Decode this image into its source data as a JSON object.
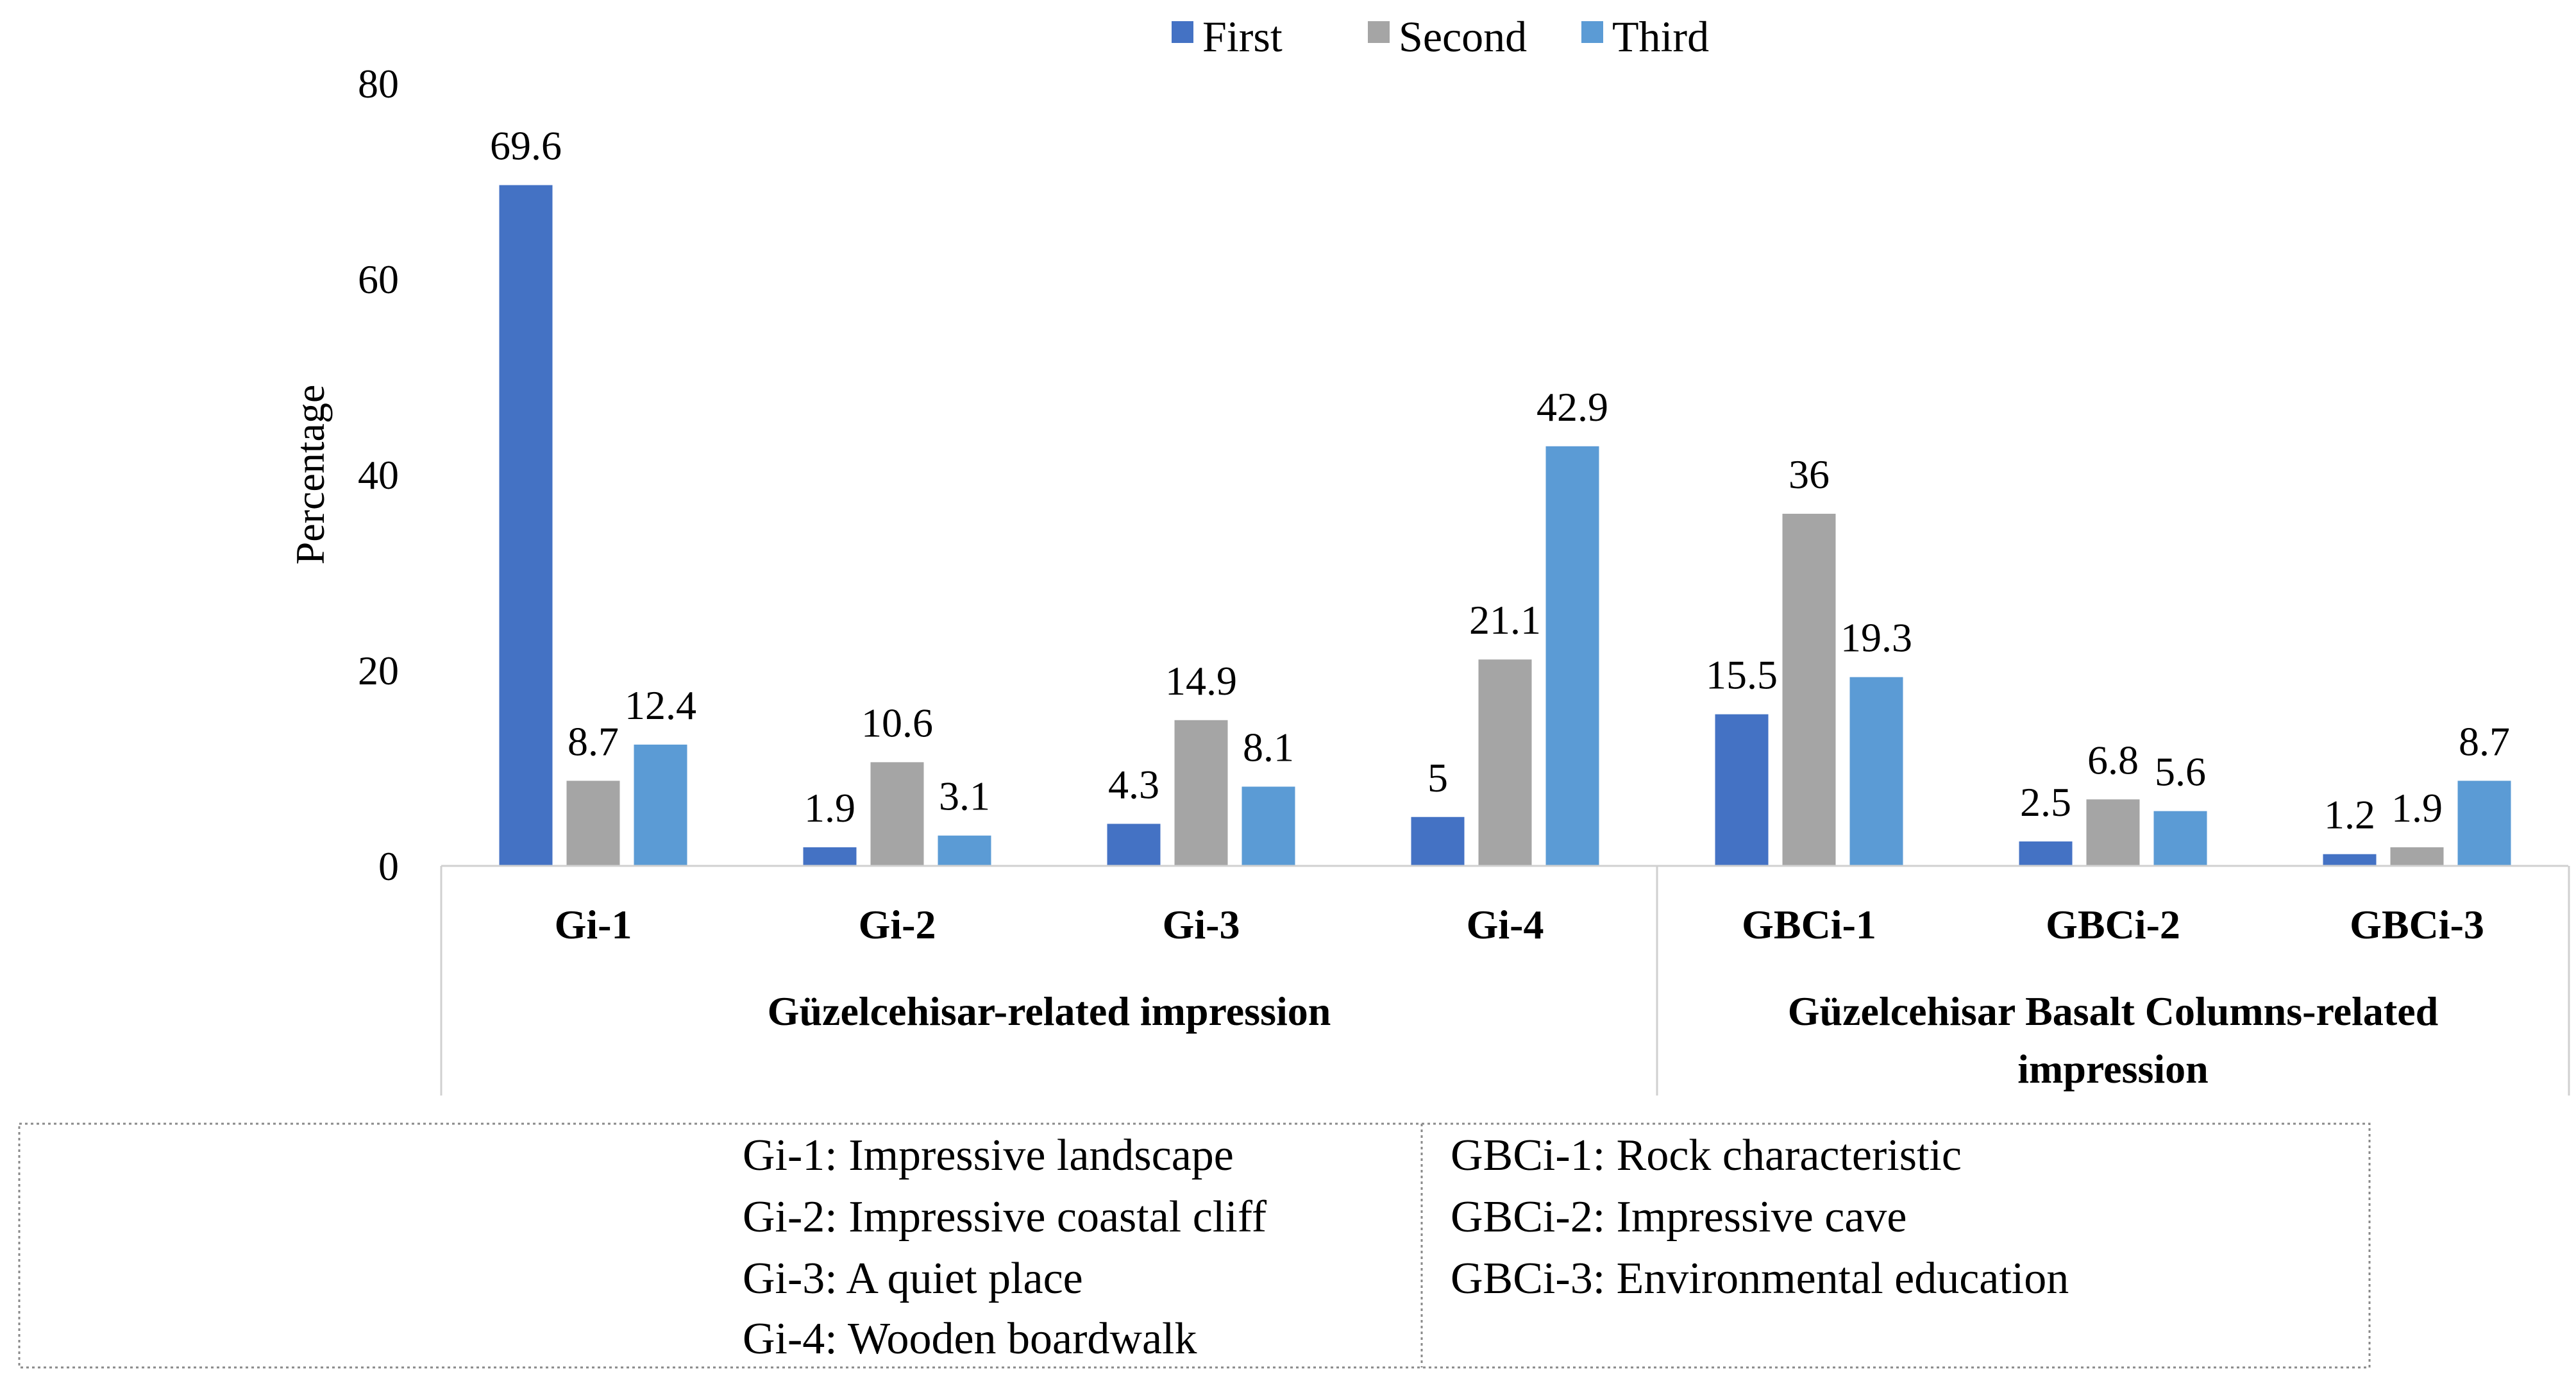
{
  "chart_data": {
    "type": "bar",
    "ylabel": "Percentage",
    "ylim": [
      0,
      80
    ],
    "yticks": [
      0,
      20,
      40,
      60,
      80
    ],
    "legend_position": "top-center",
    "categories": [
      "Gi-1",
      "Gi-2",
      "Gi-3",
      "Gi-4",
      "GBCi-1",
      "GBCi-2",
      "GBCi-3"
    ],
    "category_groups": [
      {
        "label": "Güzelcehisar-related impression",
        "label_lines": [
          "Güzelcehisar-related impression"
        ],
        "members": [
          0,
          1,
          2,
          3
        ]
      },
      {
        "label": "Güzelcehisar Basalt Columns-related impression",
        "label_lines": [
          "Güzelcehisar Basalt Columns-related",
          "impression"
        ],
        "members": [
          4,
          5,
          6
        ]
      }
    ],
    "series": [
      {
        "name": "First",
        "color": "#4472C4",
        "values": [
          69.6,
          1.9,
          4.3,
          5,
          15.5,
          2.5,
          1.2
        ]
      },
      {
        "name": "Second",
        "color": "#A5A5A5",
        "values": [
          8.7,
          10.6,
          14.9,
          21.1,
          36,
          6.8,
          1.9
        ]
      },
      {
        "name": "Third",
        "color": "#5B9BD5",
        "values": [
          12.4,
          3.1,
          8.1,
          42.9,
          19.3,
          5.6,
          8.7
        ]
      }
    ],
    "data_labels": [
      [
        "69.6",
        "1.9",
        "4.3",
        "5",
        "15.5",
        "2.5",
        "1.2"
      ],
      [
        "8.7",
        "10.6",
        "14.9",
        "21.1",
        "36",
        "6.8",
        "1.9"
      ],
      [
        "12.4",
        "3.1",
        "8.1",
        "42.9",
        "19.3",
        "5.6",
        "8.7"
      ]
    ]
  },
  "abbreviations": {
    "left": [
      "Gi-1: Impressive landscape",
      "Gi-2: Impressive coastal cliff",
      "Gi-3: A quiet place",
      "Gi-4: Wooden boardwalk"
    ],
    "right": [
      "GBCi-1: Rock characteristic",
      "GBCi-2: Impressive cave",
      "GBCi-3: Environmental education"
    ]
  }
}
